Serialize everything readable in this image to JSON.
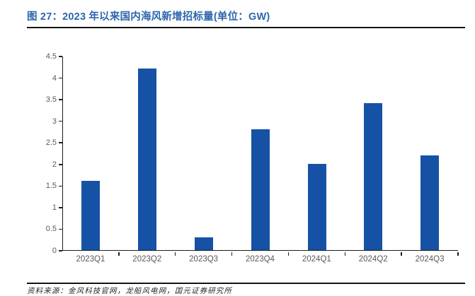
{
  "figure": {
    "title": "图 27：2023 年以来国内海风新增招标量(单位：GW)",
    "source": "资料来源：金风科技官网，龙船风电网，国元证券研究所"
  },
  "colors": {
    "bar": "#1552A5",
    "title_text": "#2D66AD",
    "axis_line": "#1F1F1F",
    "tick_label": "#595959",
    "rule": "#141414"
  },
  "chart_data": {
    "type": "bar",
    "title": "图 27：2023 年以来国内海风新增招标量(单位：GW)",
    "unit": "GW",
    "categories": [
      "2023Q1",
      "2023Q2",
      "2023Q3",
      "2023Q4",
      "2024Q1",
      "2024Q2",
      "2024Q3"
    ],
    "values": [
      1.6,
      4.2,
      0.3,
      2.8,
      2.0,
      3.4,
      2.2
    ],
    "xlabel": "",
    "ylabel": "",
    "ylim": [
      0,
      4.5
    ],
    "ytick_step": 0.5,
    "ytick_labels": [
      "0",
      "0.5",
      "1",
      "1.5",
      "2",
      "2.5",
      "3",
      "3.5",
      "4",
      "4.5"
    ],
    "grid": false,
    "legend": false,
    "bar_color": "#1552A5"
  }
}
